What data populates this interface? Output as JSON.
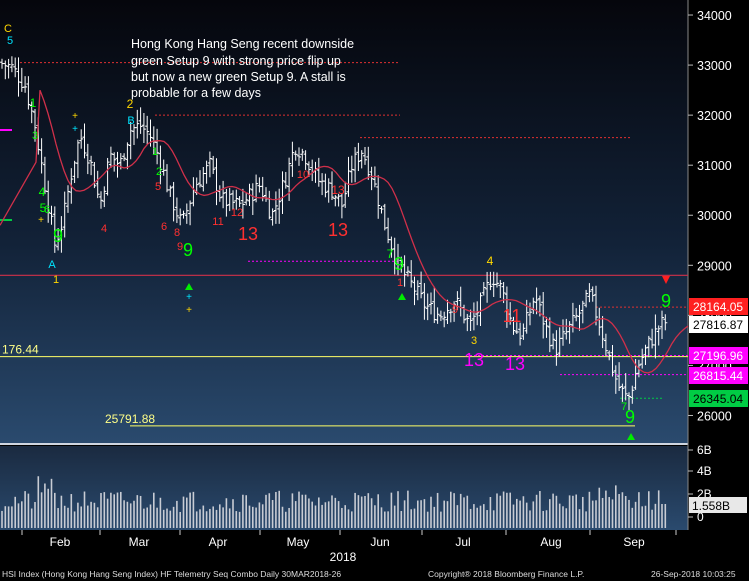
{
  "chart_data": {
    "type": "candlestick",
    "annotation": "Hong Kong Hang Seng recent downside green Setup 9 with strong price flip up but now a new green Setup 9.  A stall is probable for a few days",
    "annotation_lines": [
      "Hong Kong Hang Seng recent downside",
      "green Setup 9 with strong price flip up",
      "but now a new green Setup 9.  A stall is",
      "probable for a few days"
    ],
    "x_months": [
      "Feb",
      "Mar",
      "Apr",
      "May",
      "Jun",
      "Jul",
      "Aug",
      "Sep"
    ],
    "x_year": "2018",
    "y_ticks": [
      26000,
      27000,
      28000,
      29000,
      30000,
      31000,
      32000,
      33000,
      34000
    ],
    "ylim": [
      25450,
      34300
    ],
    "volume_ticks": [
      "6B",
      "4B",
      "2B",
      "0"
    ],
    "volume_last": "1.558B",
    "price_flags": [
      {
        "label": "28164.05",
        "value": 28164.05,
        "bg": "#ff2020",
        "fg": "#ffffff"
      },
      {
        "label": "27816.87",
        "value": 27816.87,
        "bg": "#ffffff",
        "fg": "#000000"
      },
      {
        "label": "27196.96",
        "value": 27196.96,
        "bg": "#ff00ff",
        "fg": "#ffffff"
      },
      {
        "label": "26815.44",
        "value": 26815.44,
        "bg": "#ff00ff",
        "fg": "#ffffff"
      },
      {
        "label": "26345.04",
        "value": 26345.04,
        "bg": "#00cc44",
        "fg": "#000000"
      }
    ],
    "level_labels": [
      {
        "label": "176.44",
        "value": 27176.44
      },
      {
        "label": "25791.88",
        "value": 25791.88
      }
    ],
    "setup_counts": [
      {
        "text": "C",
        "color": "#ffd700"
      },
      {
        "text": "5",
        "color": "#00e5ff"
      },
      {
        "text": "1",
        "color": "#00ff00"
      },
      {
        "text": "3",
        "color": "#00ff00"
      },
      {
        "text": "4",
        "color": "#00ff00"
      },
      {
        "text": "5",
        "color": "#00ff00"
      },
      {
        "text": "6",
        "color": "#00ff00"
      },
      {
        "text": "9",
        "color": "#00ff00"
      },
      {
        "text": "A",
        "color": "#00e5ff"
      },
      {
        "text": "1",
        "color": "#ffd700"
      },
      {
        "text": "2",
        "color": "#ffd700"
      },
      {
        "text": "B",
        "color": "#00e5ff"
      },
      {
        "text": "1",
        "color": "#00ff00"
      },
      {
        "text": "2",
        "color": "#00ff00"
      },
      {
        "text": "4",
        "color": "#ff3030"
      },
      {
        "text": "5",
        "color": "#ff3030"
      },
      {
        "text": "6",
        "color": "#ff3030"
      },
      {
        "text": "8",
        "color": "#ff3030"
      },
      {
        "text": "9",
        "color": "#ff3030"
      },
      {
        "text": "9",
        "color": "#00ff00"
      },
      {
        "text": "11",
        "color": "#ff3030"
      },
      {
        "text": "12",
        "color": "#ff3030"
      },
      {
        "text": "13",
        "color": "#ff3030"
      },
      {
        "text": "13",
        "color": "#ff3030"
      },
      {
        "text": "10",
        "color": "#ff3030"
      },
      {
        "text": "13",
        "color": "#ff3030"
      },
      {
        "text": "7",
        "color": "#00ff00"
      },
      {
        "text": "9",
        "color": "#00ff00"
      },
      {
        "text": "1",
        "color": "#ff3030"
      },
      {
        "text": "4",
        "color": "#ffd700"
      },
      {
        "text": "9",
        "color": "#ff3030"
      },
      {
        "text": "11",
        "color": "#ff3030"
      },
      {
        "text": "3",
        "color": "#ffd700"
      },
      {
        "text": "13",
        "color": "#ff00ff"
      },
      {
        "text": "13",
        "color": "#ff00ff"
      },
      {
        "text": "9",
        "color": "#00ff00"
      },
      {
        "text": "9",
        "color": "#00ff00"
      },
      {
        "text": "7",
        "color": "#00ff00"
      }
    ],
    "footer_left": "HSI Index (Hong Kong Hang Seng Index) HF Telemetry Seq Combo  Daily 30MAR2018-26",
    "footer_center": "Copyright® 2018 Bloomberg Finance L.P.",
    "footer_right": "26-Sep-2018 10:03:25",
    "colors": {
      "background_top": "#0a0a14",
      "background_bottom": "#2a4a6e",
      "moving_average": "#d0304a",
      "candles": "#ffffff",
      "level_line": "#ffff66"
    }
  }
}
